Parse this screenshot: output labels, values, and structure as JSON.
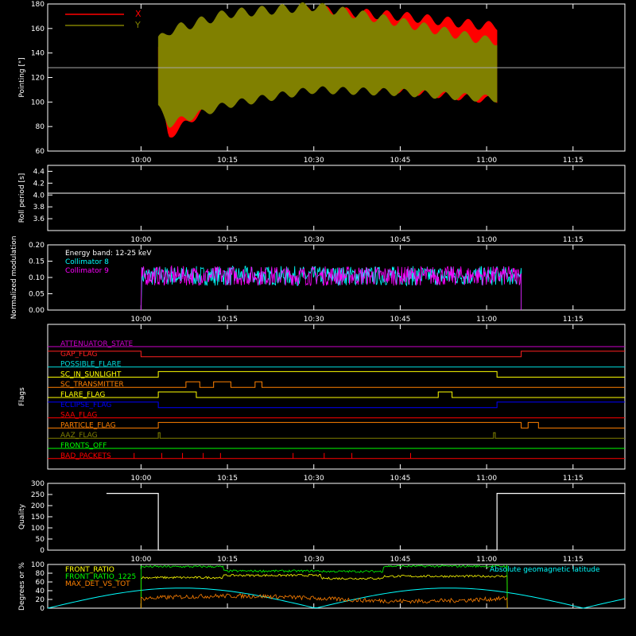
{
  "time_ticks": [
    "10:00",
    "10:15",
    "10:30",
    "10:45",
    "11:00",
    "11:15"
  ],
  "chart_data": [
    {
      "id": "pointing",
      "type": "line",
      "ylabel": "Pointing [\"]",
      "ylim": [
        60,
        180
      ],
      "yticks": [
        60,
        80,
        100,
        120,
        140,
        160,
        180
      ],
      "legend": [
        {
          "name": "X",
          "color": "#ff0000"
        },
        {
          "name": "Y",
          "color": "#808000"
        }
      ],
      "ref_line": 128,
      "data_start": "10:03",
      "data_end": "11:02",
      "series": [
        {
          "name": "X",
          "color": "#ff0000",
          "band": [
            [
              10.05,
              110,
              145
            ],
            [
              10.08,
              72,
              120
            ],
            [
              10.25,
              108,
              165
            ],
            [
              10.5,
              115,
              175
            ],
            [
              10.75,
              110,
              170
            ],
            [
              11.0,
              102,
              162
            ]
          ]
        },
        {
          "name": "Y",
          "color": "#808000",
          "band": [
            [
              10.05,
              95,
              150
            ],
            [
              10.08,
              82,
              158
            ],
            [
              10.25,
              98,
              172
            ],
            [
              10.5,
              110,
              178
            ],
            [
              10.75,
              108,
              165
            ],
            [
              11.0,
              103,
              150
            ]
          ]
        }
      ]
    },
    {
      "id": "roll",
      "type": "line",
      "ylabel": "Roll period [s]",
      "ylim": [
        3.4,
        4.5
      ],
      "yticks": [
        "3.6",
        "3.8",
        "4.0",
        "4.2",
        "4.4"
      ],
      "value": 4.03
    },
    {
      "id": "modulation",
      "type": "line",
      "ylabel": "Normalized modulation",
      "ylim": [
        0,
        0.2
      ],
      "yticks": [
        "0.00",
        "0.05",
        "0.10",
        "0.15",
        "0.20"
      ],
      "title": "Energy band: 12-25 keV",
      "series": [
        {
          "name": "Collimator 8",
          "color": "#00ffff",
          "mean": 0.105,
          "start": "10:00",
          "end": "11:06"
        },
        {
          "name": "Collimator 9",
          "color": "#ff00ff",
          "mean": 0.105,
          "start": "10:00",
          "end": "11:06"
        }
      ]
    },
    {
      "id": "flags",
      "type": "line",
      "ylabel": "Flags",
      "series": [
        {
          "name": "ATTENUATOR_STATE",
          "color": "#cc00cc",
          "steps": []
        },
        {
          "name": "GAP_FLAG",
          "color": "#ff2020",
          "steps": [
            [
              9.9,
              1
            ],
            [
              10.0,
              0
            ],
            [
              11.1,
              1
            ]
          ]
        },
        {
          "name": "POSSIBLE_FLARE",
          "color": "#00dddd",
          "steps": []
        },
        {
          "name": "SC_IN_SUNLIGHT",
          "color": "#ffff00",
          "steps": [
            [
              9.9,
              0
            ],
            [
              10.05,
              1
            ],
            [
              11.03,
              0
            ]
          ]
        },
        {
          "name": "SC_TRANSMITTER",
          "color": "#ff8000",
          "steps": [
            [
              9.9,
              0
            ],
            [
              10.13,
              1
            ],
            [
              10.17,
              0
            ],
            [
              10.21,
              1
            ],
            [
              10.26,
              0
            ],
            [
              10.33,
              1
            ],
            [
              10.35,
              0
            ]
          ]
        },
        {
          "name": "FLARE_FLAG",
          "color": "#ffff00",
          "steps": [
            [
              9.9,
              0
            ],
            [
              10.05,
              1
            ],
            [
              10.16,
              0
            ],
            [
              10.86,
              1
            ],
            [
              10.9,
              0
            ]
          ]
        },
        {
          "name": "ECLIPSE_FLAG",
          "color": "#0000ff",
          "steps": [
            [
              9.9,
              1
            ],
            [
              10.05,
              0
            ],
            [
              11.03,
              1
            ]
          ]
        },
        {
          "name": "SAA_FLAG",
          "color": "#ff0000",
          "steps": []
        },
        {
          "name": "PARTICLE_FLAG",
          "color": "#ff8000",
          "steps": [
            [
              9.9,
              0
            ],
            [
              10.05,
              1
            ],
            [
              11.1,
              0
            ],
            [
              11.12,
              1
            ],
            [
              11.15,
              0
            ]
          ]
        },
        {
          "name": "AAZ_FLAG",
          "color": "#808000",
          "steps": [
            [
              9.9,
              0
            ],
            [
              10.05,
              1
            ],
            [
              10.055,
              0
            ],
            [
              11.02,
              1
            ],
            [
              11.025,
              0
            ]
          ]
        },
        {
          "name": "FRONTS_OFF",
          "color": "#00ff00",
          "steps": []
        },
        {
          "name": "BAD_PACKETS",
          "color": "#ff0000",
          "spikes": [
            9.98,
            10.06,
            10.12,
            10.18,
            10.23,
            10.44,
            10.53,
            10.61,
            10.78
          ]
        }
      ]
    },
    {
      "id": "quality",
      "type": "line",
      "ylabel": "Quality",
      "ylim": [
        0,
        300
      ],
      "yticks": [
        0,
        50,
        100,
        150,
        200,
        250,
        300
      ],
      "steps": [
        [
          9.9,
          255
        ],
        [
          10.05,
          0
        ],
        [
          11.03,
          255
        ],
        [
          11.4,
          255
        ]
      ]
    },
    {
      "id": "front_ratio",
      "type": "line",
      "ylabel": "Degrees or %",
      "ylim": [
        0,
        100
      ],
      "yticks": [
        0,
        20,
        40,
        60,
        80,
        100
      ],
      "annotation": {
        "text": "Absolute geomagnetic latitude",
        "color": "#00ffff"
      },
      "series": [
        {
          "name": "FRONT_RATIO",
          "color": "#ffff00"
        },
        {
          "name": "FRONT_RATIO_1225",
          "color": "#00ff00"
        },
        {
          "name": "MAX_DET_VS_TOT",
          "color": "#ff8000"
        }
      ]
    }
  ]
}
